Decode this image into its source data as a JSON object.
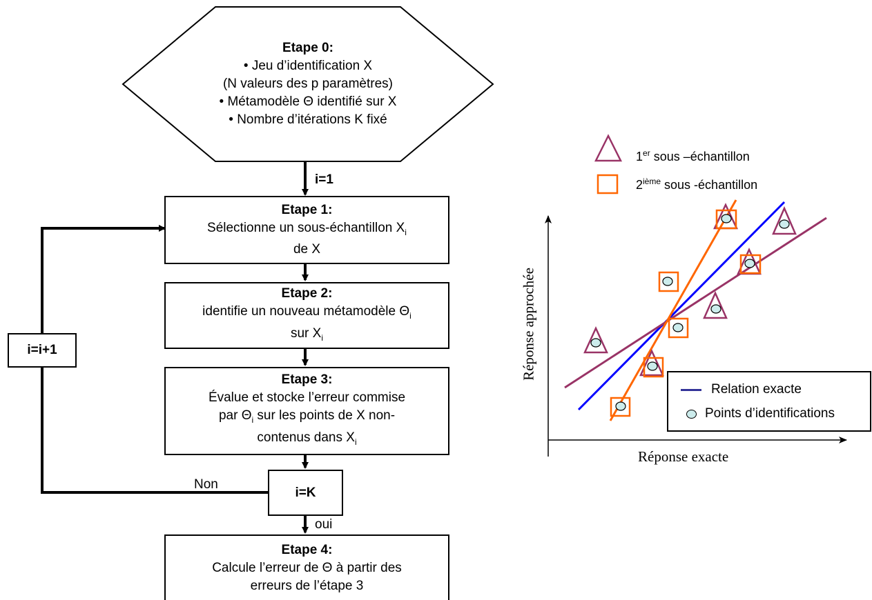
{
  "flowchart": {
    "step0": {
      "title": "Etape 0:",
      "lines": [
        "• Jeu d’identification X",
        "(N valeurs des p paramètres)",
        "• Métamodèle Θ identifié sur X",
        "• Nombre d’itérations K fixé"
      ]
    },
    "i_init": "i=1",
    "step1": {
      "title": "Etape 1:",
      "line1": "Sélectionne un sous-échantillon X",
      "line1_sub": "i",
      "line2": "de X"
    },
    "step2": {
      "title": "Etape 2:",
      "line1": "identifie un nouveau métamodèle Θ",
      "line1_sub": "i",
      "line2": "sur X",
      "line2_sub": "i"
    },
    "step3": {
      "title": "Etape 3:",
      "line1": "Évalue et stocke l’erreur commise",
      "line2a": "par Θ",
      "line2_sub": "i",
      "line2b": " sur les points de X non-",
      "line3": "contenus dans X",
      "line3_sub": "i"
    },
    "increment": "i=i+1",
    "decision": "i=K",
    "no_label": "Non",
    "yes_label": "oui",
    "step4": {
      "title": "Etape 4:",
      "line1": "Calcule l’erreur de Θ à partir des",
      "line2": "erreurs de l’étape 3"
    }
  },
  "scatter": {
    "legend_top": [
      {
        "prefix": "1",
        "sup": "er",
        "text": " sous –échantillon",
        "marker": "triangle",
        "color": "#993366"
      },
      {
        "prefix": "2",
        "sup": "ième",
        "text": " sous -échantillon",
        "marker": "square",
        "color": "#FF6600"
      }
    ],
    "xlabel": "Réponse exacte",
    "ylabel": "Réponse approchée",
    "legend_bottom": [
      {
        "text": "Relation exacte",
        "marker": "line",
        "color": "#333399"
      },
      {
        "text": "Points d’identifications",
        "marker": "circle",
        "color": "#CCECEC"
      }
    ],
    "colors": {
      "exact_line": "#0000FF",
      "triangle_fit": "#993366",
      "square_fit": "#FF6600",
      "point_fill": "#CCECEC"
    }
  }
}
